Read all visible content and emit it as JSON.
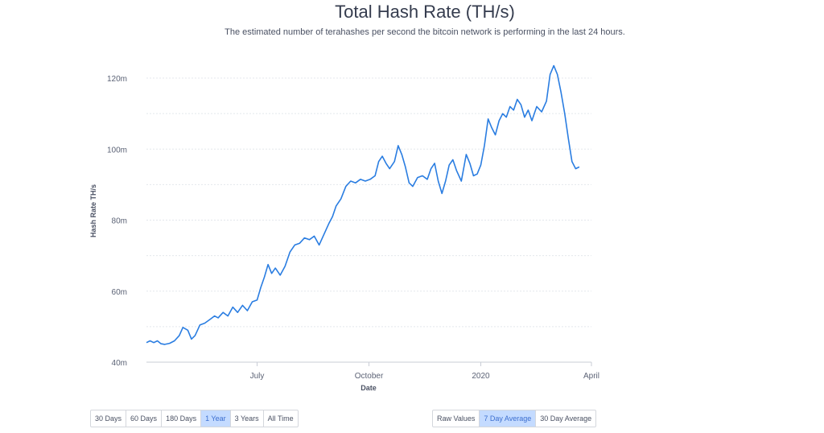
{
  "header": {
    "title": "Total Hash Rate (TH/s)",
    "subtitle": "The estimated number of terahashes per second the bitcoin network is performing in the last 24 hours."
  },
  "timespan_buttons": [
    {
      "label": "30 Days",
      "active": false
    },
    {
      "label": "60 Days",
      "active": false
    },
    {
      "label": "180 Days",
      "active": false
    },
    {
      "label": "1 Year",
      "active": true
    },
    {
      "label": "3 Years",
      "active": false
    },
    {
      "label": "All Time",
      "active": false
    }
  ],
  "average_buttons": [
    {
      "label": "Raw Values",
      "active": false
    },
    {
      "label": "7 Day Average",
      "active": true
    },
    {
      "label": "30 Day Average",
      "active": false
    }
  ],
  "colors": {
    "line": "#2a7de1",
    "grid": "#e4e7ec",
    "active_button": "#c4dbff"
  },
  "chart_data": {
    "type": "line",
    "title": "Total Hash Rate (TH/s)",
    "xlabel": "Date",
    "ylabel": "Hash Rate TH/s",
    "ylim": [
      40000000,
      125000000
    ],
    "xlim": [
      "2019-04-01",
      "2020-04-01"
    ],
    "y_ticks": [
      {
        "value": 40000000,
        "label": "40m"
      },
      {
        "value": 60000000,
        "label": "60m"
      },
      {
        "value": 80000000,
        "label": "80m"
      },
      {
        "value": 100000000,
        "label": "100m"
      },
      {
        "value": 120000000,
        "label": "120m"
      }
    ],
    "x_ticks": [
      {
        "value": "2019-07-01",
        "label": "July"
      },
      {
        "value": "2019-10-01",
        "label": "October"
      },
      {
        "value": "2020-01-01",
        "label": "2020"
      },
      {
        "value": "2020-04-01",
        "label": "April"
      }
    ],
    "grid": true,
    "series": [
      {
        "values": [
          [
            "2019-04-01",
            45.5
          ],
          [
            "2019-04-04",
            46.0
          ],
          [
            "2019-04-07",
            45.5
          ],
          [
            "2019-04-10",
            46.0
          ],
          [
            "2019-04-13",
            45.2
          ],
          [
            "2019-04-16",
            45.0
          ],
          [
            "2019-04-20",
            45.3
          ],
          [
            "2019-04-24",
            46.0
          ],
          [
            "2019-04-28",
            47.5
          ],
          [
            "2019-05-01",
            49.8
          ],
          [
            "2019-05-05",
            49.0
          ],
          [
            "2019-05-08",
            46.5
          ],
          [
            "2019-05-11",
            47.5
          ],
          [
            "2019-05-15",
            50.5
          ],
          [
            "2019-05-19",
            51.0
          ],
          [
            "2019-05-23",
            52.0
          ],
          [
            "2019-05-27",
            53.0
          ],
          [
            "2019-05-30",
            52.5
          ],
          [
            "2019-06-03",
            54.0
          ],
          [
            "2019-06-07",
            53.0
          ],
          [
            "2019-06-11",
            55.5
          ],
          [
            "2019-06-15",
            54.0
          ],
          [
            "2019-06-19",
            56.0
          ],
          [
            "2019-06-23",
            54.5
          ],
          [
            "2019-06-27",
            57.0
          ],
          [
            "2019-07-01",
            57.5
          ],
          [
            "2019-07-04",
            61.0
          ],
          [
            "2019-07-07",
            64.0
          ],
          [
            "2019-07-10",
            67.5
          ],
          [
            "2019-07-13",
            65.0
          ],
          [
            "2019-07-16",
            66.5
          ],
          [
            "2019-07-20",
            64.5
          ],
          [
            "2019-07-24",
            67.0
          ],
          [
            "2019-07-28",
            71.0
          ],
          [
            "2019-08-01",
            73.0
          ],
          [
            "2019-08-05",
            73.5
          ],
          [
            "2019-08-09",
            75.0
          ],
          [
            "2019-08-13",
            74.5
          ],
          [
            "2019-08-17",
            75.5
          ],
          [
            "2019-08-21",
            73.0
          ],
          [
            "2019-08-25",
            76.0
          ],
          [
            "2019-08-29",
            79.0
          ],
          [
            "2019-09-01",
            81.0
          ],
          [
            "2019-09-04",
            84.0
          ],
          [
            "2019-09-08",
            86.0
          ],
          [
            "2019-09-12",
            89.5
          ],
          [
            "2019-09-16",
            91.0
          ],
          [
            "2019-09-20",
            90.5
          ],
          [
            "2019-09-24",
            91.5
          ],
          [
            "2019-09-28",
            91.0
          ],
          [
            "2019-10-02",
            91.5
          ],
          [
            "2019-10-06",
            92.5
          ],
          [
            "2019-10-09",
            96.5
          ],
          [
            "2019-10-12",
            98.0
          ],
          [
            "2019-10-15",
            96.0
          ],
          [
            "2019-10-18",
            94.5
          ],
          [
            "2019-10-22",
            96.5
          ],
          [
            "2019-10-25",
            101.0
          ],
          [
            "2019-10-28",
            98.5
          ],
          [
            "2019-10-31",
            95.0
          ],
          [
            "2019-11-03",
            90.5
          ],
          [
            "2019-11-06",
            89.5
          ],
          [
            "2019-11-10",
            92.0
          ],
          [
            "2019-11-14",
            92.5
          ],
          [
            "2019-11-18",
            91.5
          ],
          [
            "2019-11-21",
            94.5
          ],
          [
            "2019-11-24",
            96.0
          ],
          [
            "2019-11-27",
            91.0
          ],
          [
            "2019-11-30",
            87.5
          ],
          [
            "2019-12-03",
            91.0
          ],
          [
            "2019-12-06",
            95.5
          ],
          [
            "2019-12-09",
            97.0
          ],
          [
            "2019-12-12",
            94.0
          ],
          [
            "2019-12-16",
            91.0
          ],
          [
            "2019-12-20",
            98.5
          ],
          [
            "2019-12-23",
            96.0
          ],
          [
            "2019-12-26",
            92.5
          ],
          [
            "2019-12-29",
            93.0
          ],
          [
            "2020-01-01",
            95.5
          ],
          [
            "2020-01-04",
            101.0
          ],
          [
            "2020-01-07",
            108.5
          ],
          [
            "2020-01-10",
            106.0
          ],
          [
            "2020-01-13",
            104.0
          ],
          [
            "2020-01-16",
            108.0
          ],
          [
            "2020-01-19",
            110.0
          ],
          [
            "2020-01-22",
            109.0
          ],
          [
            "2020-01-25",
            112.0
          ],
          [
            "2020-01-28",
            111.0
          ],
          [
            "2020-01-31",
            114.0
          ],
          [
            "2020-02-03",
            112.5
          ],
          [
            "2020-02-06",
            109.0
          ],
          [
            "2020-02-09",
            111.0
          ],
          [
            "2020-02-12",
            108.0
          ],
          [
            "2020-02-16",
            112.0
          ],
          [
            "2020-02-20",
            110.5
          ],
          [
            "2020-02-24",
            113.5
          ],
          [
            "2020-02-27",
            121.0
          ],
          [
            "2020-03-01",
            123.5
          ],
          [
            "2020-03-04",
            121.0
          ],
          [
            "2020-03-07",
            116.0
          ],
          [
            "2020-03-10",
            110.0
          ],
          [
            "2020-03-13",
            103.0
          ],
          [
            "2020-03-16",
            96.5
          ],
          [
            "2020-03-19",
            94.5
          ],
          [
            "2020-03-22",
            95.0
          ]
        ]
      }
    ]
  }
}
